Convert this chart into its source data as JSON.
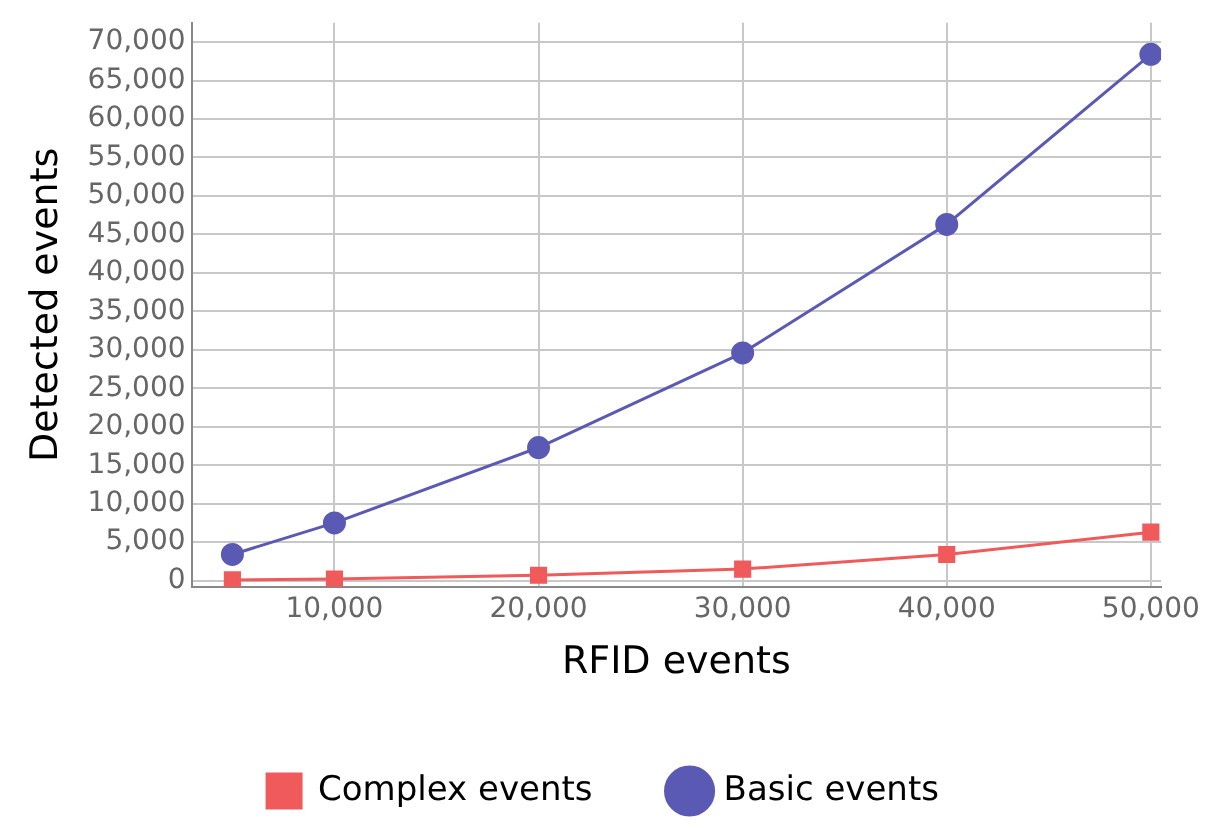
{
  "chart_data": {
    "type": "line",
    "xlabel": "RFID events",
    "ylabel": "Detected events",
    "x": [
      5000,
      10000,
      20000,
      30000,
      40000,
      50000
    ],
    "series": [
      {
        "name": "Complex events",
        "color": "#f05a5a",
        "marker": "square",
        "values": [
          100,
          200,
          700,
          1500,
          3400,
          6300
        ]
      },
      {
        "name": "Basic events",
        "color": "#5a5ab4",
        "marker": "circle",
        "values": [
          3400,
          7500,
          17300,
          29600,
          46300,
          68400
        ]
      }
    ],
    "xlim": [
      3000,
      50500
    ],
    "xticks": [
      {
        "value": 10000,
        "label": "10,000"
      },
      {
        "value": 20000,
        "label": "20,000"
      },
      {
        "value": 30000,
        "label": "30,000"
      },
      {
        "value": 40000,
        "label": "40,000"
      },
      {
        "value": 50000,
        "label": "50,000"
      }
    ],
    "ylim": [
      -800,
      72500
    ],
    "yticks": [
      0,
      {
        "value": 5000,
        "label": "5,000"
      },
      {
        "value": 10000,
        "label": "10,000"
      },
      {
        "value": 15000,
        "label": "15,000"
      },
      {
        "value": 20000,
        "label": "20,000"
      },
      {
        "value": 25000,
        "label": "25,000"
      },
      {
        "value": 30000,
        "label": "30,000"
      },
      {
        "value": 35000,
        "label": "35,000"
      },
      {
        "value": 40000,
        "label": "40,000"
      },
      {
        "value": 45000,
        "label": "45,000"
      },
      {
        "value": 50000,
        "label": "50,000"
      },
      {
        "value": 55000,
        "label": "55,000"
      },
      {
        "value": 60000,
        "label": "60,000"
      },
      {
        "value": 65000,
        "label": "65,000"
      },
      {
        "value": 70000,
        "label": "70,000"
      }
    ],
    "grid": true,
    "legend": "bottom",
    "line_style": "solid"
  }
}
